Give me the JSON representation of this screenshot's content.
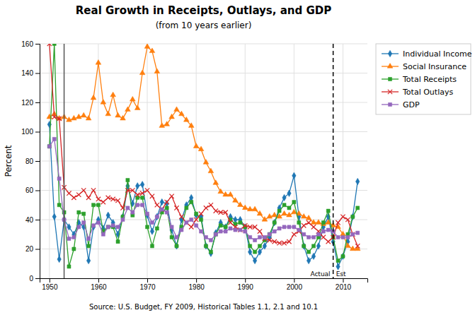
{
  "chart_data": {
    "type": "line",
    "title": "Real Growth in Receipts, Outlays, and GDP",
    "subtitle": "(from 10 years earlier)",
    "ylabel": "Percent",
    "source": "Source: U.S. Budget, FY 2009, Historical Tables 1.1, 2.1 and 10.1",
    "xlim": [
      1948,
      2015
    ],
    "ylim": [
      0,
      160
    ],
    "xticks": [
      1950,
      1960,
      1970,
      1980,
      1990,
      2000,
      2010
    ],
    "yticks": [
      0,
      20,
      40,
      60,
      80,
      100,
      120,
      140,
      160
    ],
    "grid": true,
    "legend": "right",
    "vlines": [
      {
        "x": 1953,
        "line_style": "solid"
      },
      {
        "x": 2008,
        "line_style": "dashed",
        "labels": [
          "Actual",
          "Est"
        ]
      }
    ],
    "x": [
      1950,
      1951,
      1952,
      1953,
      1954,
      1955,
      1956,
      1957,
      1958,
      1959,
      1960,
      1961,
      1962,
      1963,
      1964,
      1965,
      1966,
      1967,
      1968,
      1969,
      1970,
      1971,
      1972,
      1973,
      1974,
      1975,
      1976,
      1977,
      1978,
      1979,
      1980,
      1981,
      1982,
      1983,
      1984,
      1985,
      1986,
      1987,
      1988,
      1989,
      1990,
      1991,
      1992,
      1993,
      1994,
      1995,
      1996,
      1997,
      1998,
      1999,
      2000,
      2001,
      2002,
      2003,
      2004,
      2005,
      2006,
      2007,
      2008,
      2009,
      2010,
      2011,
      2012,
      2013
    ],
    "series": [
      {
        "name": "Individual Income",
        "marker": "diamond",
        "values": [
          105,
          42,
          13,
          40,
          35,
          30,
          38,
          35,
          12,
          35,
          40,
          34,
          43,
          38,
          30,
          42,
          63,
          51,
          63,
          64,
          43,
          32,
          42,
          52,
          51,
          33,
          22,
          40,
          50,
          55,
          43,
          42,
          22,
          17,
          31,
          38,
          35,
          42,
          40,
          40,
          35,
          18,
          12,
          18,
          22,
          28,
          38,
          48,
          55,
          58,
          70,
          42,
          22,
          12,
          15,
          22,
          35,
          42,
          25,
          8,
          15,
          25,
          42,
          66
        ]
      },
      {
        "name": "Social Insurance",
        "marker": "triangle",
        "values": [
          110,
          112,
          109,
          110,
          108,
          109,
          110,
          111,
          109,
          123,
          147,
          120,
          112,
          125,
          111,
          109,
          115,
          122,
          116,
          140,
          158,
          155,
          141,
          104,
          105,
          110,
          115,
          112,
          108,
          104,
          90,
          88,
          79,
          73,
          65,
          59,
          57,
          57,
          53,
          50,
          48,
          47,
          47,
          44,
          40,
          42,
          43,
          42,
          44,
          43,
          45,
          44,
          42,
          41,
          38,
          38,
          37,
          38,
          36,
          35,
          30,
          22,
          20,
          20
        ]
      },
      {
        "name": "Total Receipts",
        "marker": "square",
        "values": [
          90,
          160,
          50,
          45,
          8,
          20,
          45,
          44,
          22,
          50,
          50,
          32,
          35,
          35,
          25,
          42,
          67,
          43,
          55,
          55,
          35,
          22,
          34,
          45,
          48,
          28,
          22,
          35,
          48,
          52,
          44,
          40,
          22,
          18,
          30,
          36,
          35,
          40,
          37,
          38,
          35,
          22,
          18,
          22,
          26,
          30,
          38,
          46,
          50,
          48,
          52,
          38,
          22,
          18,
          22,
          28,
          38,
          46,
          28,
          12,
          15,
          30,
          42,
          48
        ]
      },
      {
        "name": "Total Outlays",
        "marker": "x",
        "values": [
          160,
          110,
          109,
          62,
          58,
          55,
          57,
          60,
          55,
          60,
          54,
          52,
          55,
          54,
          53,
          48,
          60,
          60,
          57,
          58,
          60,
          56,
          50,
          47,
          52,
          56,
          48,
          42,
          38,
          35,
          40,
          44,
          48,
          50,
          46,
          45,
          45,
          38,
          35,
          33,
          36,
          35,
          35,
          32,
          27,
          26,
          25,
          24,
          24,
          25,
          30,
          32,
          36,
          38,
          35,
          32,
          28,
          25,
          28,
          38,
          42,
          40,
          30,
          22
        ]
      },
      {
        "name": "GDP",
        "marker": "square",
        "values": [
          90,
          95,
          68,
          40,
          27,
          28,
          35,
          38,
          27,
          36,
          38,
          30,
          35,
          36,
          35,
          40,
          48,
          45,
          50,
          50,
          44,
          38,
          42,
          47,
          45,
          35,
          28,
          33,
          38,
          40,
          36,
          32,
          28,
          26,
          30,
          32,
          32,
          34,
          33,
          33,
          32,
          28,
          26,
          28,
          28,
          30,
          32,
          34,
          35,
          35,
          35,
          33,
          30,
          28,
          28,
          30,
          32,
          33,
          32,
          28,
          28,
          28,
          30,
          31
        ]
      }
    ]
  }
}
